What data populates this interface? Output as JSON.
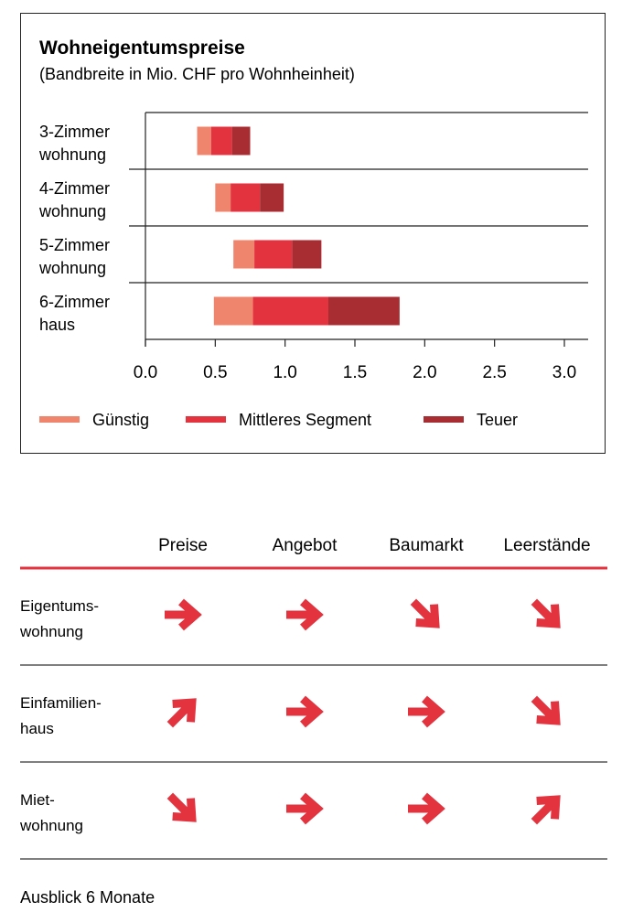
{
  "chart_data": {
    "type": "bar",
    "title": "Wohneigentumspreise",
    "subtitle": "(Bandbreite in Mio. CHF pro Wohnheinheit)",
    "categories": [
      [
        "3-Zimmer",
        "wohnung"
      ],
      [
        "4-Zimmer",
        "wohnung"
      ],
      [
        "5-Zimmer",
        "wohnung"
      ],
      [
        "6-Zimmer",
        "haus"
      ]
    ],
    "stacked_range": true,
    "start": [
      0.37,
      0.5,
      0.63,
      0.49
    ],
    "series": [
      {
        "name": "Günstig",
        "values": [
          0.1,
          0.11,
          0.15,
          0.28
        ],
        "color": "#f0856e"
      },
      {
        "name": "Mittleres Segment",
        "values": [
          0.15,
          0.21,
          0.27,
          0.54
        ],
        "color": "#e2333e"
      },
      {
        "name": "Teuer",
        "values": [
          0.13,
          0.17,
          0.21,
          0.51
        ],
        "color": "#a82d32"
      }
    ],
    "x_ticks": [
      "0.0",
      "0.5",
      "1.0",
      "1.5",
      "2.0",
      "2.5",
      "3.0"
    ],
    "xlim": [
      0,
      3.0
    ],
    "grid": false,
    "legend_position": "bottom"
  },
  "outlook": {
    "columns": [
      "Preise",
      "Angebot",
      "Baumarkt",
      "Leerstände"
    ],
    "rows": [
      {
        "label": [
          "Eigentums-",
          "wohnung"
        ],
        "directions": [
          "right",
          "right",
          "down-right",
          "down-right"
        ]
      },
      {
        "label": [
          "Einfamilien-",
          "haus"
        ],
        "directions": [
          "up-right",
          "right",
          "right",
          "down-right"
        ]
      },
      {
        "label": [
          "Miet-",
          "wohnung"
        ],
        "directions": [
          "down-right",
          "right",
          "right",
          "up-right"
        ]
      }
    ],
    "footer": "Ausblick 6 Monate",
    "accent_color": "#e2333e",
    "arrow_icon": "arrow-icon"
  }
}
